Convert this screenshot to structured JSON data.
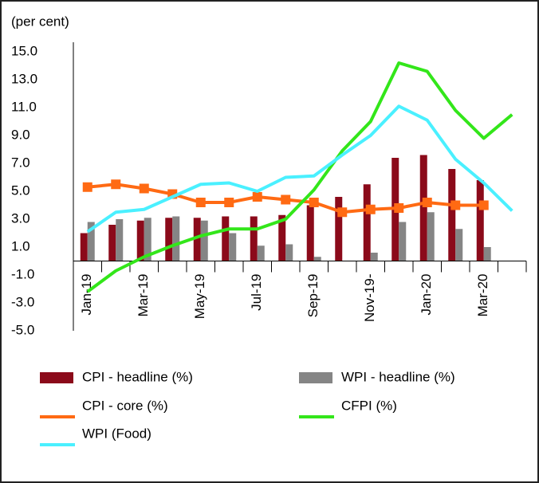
{
  "chart_data": {
    "type": "combo",
    "y_label": "(per cent)",
    "categories": [
      "Jan-19",
      null,
      "Mar-19",
      null,
      "May-19",
      null,
      "Jul-19",
      null,
      "Sep-19",
      null,
      "Nov-19-",
      null,
      "Jan-20",
      null,
      "Mar-20",
      null
    ],
    "ylim": [
      -5,
      15
    ],
    "yticks": [
      {
        "value": -5,
        "label": "-5.0"
      },
      {
        "value": -3,
        "label": "-3.0"
      },
      {
        "value": -1,
        "label": "-1.0"
      },
      {
        "value": 1,
        "label": "1.0"
      },
      {
        "value": 3,
        "label": "3.0"
      },
      {
        "value": 5,
        "label": "5.0"
      },
      {
        "value": 7,
        "label": "7.0"
      },
      {
        "value": 9,
        "label": "9.0"
      },
      {
        "value": 11,
        "label": "11.0"
      },
      {
        "value": 13,
        "label": "13.0"
      },
      {
        "value": 15,
        "label": "15.0"
      }
    ],
    "legend": "bottom",
    "series": [
      {
        "name": "CPI - headline (%)",
        "chart_type": "bar",
        "color": "#8b0a1a",
        "values": [
          2.0,
          2.6,
          2.9,
          3.1,
          3.1,
          3.2,
          3.2,
          3.3,
          4.0,
          4.6,
          5.5,
          7.4,
          7.6,
          6.6,
          5.8,
          null
        ]
      },
      {
        "name": "WPI - headline (%)",
        "chart_type": "bar",
        "color": "#858585",
        "values": [
          2.8,
          3.0,
          3.1,
          3.2,
          2.9,
          2.0,
          1.1,
          1.2,
          0.3,
          0.0,
          0.6,
          2.8,
          3.5,
          2.3,
          1.0,
          null
        ]
      },
      {
        "name": "CPI - core (%)",
        "chart_type": "line",
        "marker": "square",
        "color": "#ff6a13",
        "values": [
          5.3,
          5.5,
          5.2,
          4.8,
          4.2,
          4.2,
          4.6,
          4.4,
          4.2,
          3.5,
          3.7,
          3.8,
          4.2,
          4.0,
          4.0,
          null
        ]
      },
      {
        "name": "CFPI (%)",
        "chart_type": "line",
        "color": "#33e61a",
        "values": [
          -2.2,
          -0.7,
          0.3,
          1.1,
          1.8,
          2.3,
          2.3,
          3.0,
          5.1,
          7.9,
          10.0,
          14.2,
          13.6,
          10.8,
          8.8,
          10.5
        ]
      },
      {
        "name": "WPI (Food)",
        "chart_type": "line",
        "color": "#4af0ff",
        "values": [
          2.1,
          3.5,
          3.7,
          4.6,
          5.5,
          5.6,
          5.0,
          6.0,
          6.1,
          7.6,
          9.0,
          11.1,
          10.1,
          7.3,
          5.6,
          3.6
        ]
      }
    ]
  }
}
